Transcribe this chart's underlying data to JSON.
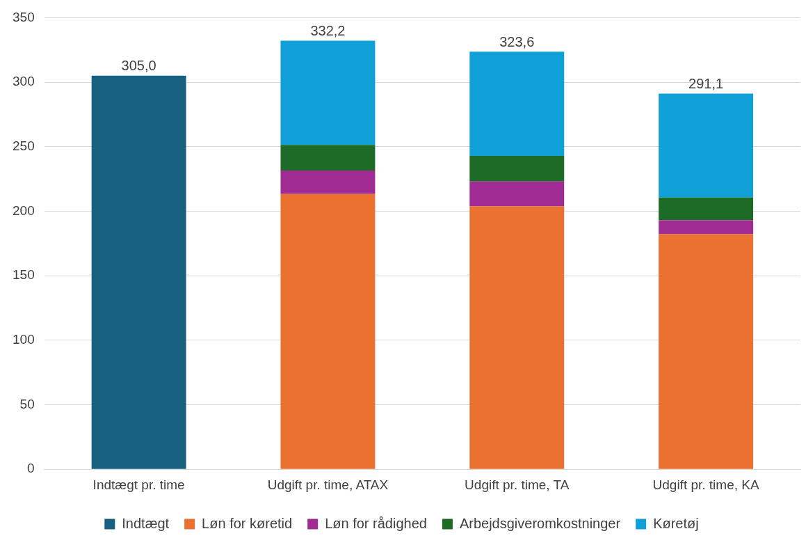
{
  "chart_data": {
    "type": "bar",
    "stacked": true,
    "categories": [
      "Indtægt pr. time",
      "Udgift pr. time, ATAX",
      "Udgift pr. time, TA",
      "Udgift pr. time, KA"
    ],
    "series": [
      {
        "name": "Indtægt",
        "color": "#17607f",
        "values": [
          305.0,
          null,
          null,
          null
        ]
      },
      {
        "name": "Løn for køretid",
        "color": "#ea7130",
        "values": [
          null,
          213.3,
          203.7,
          182.2
        ]
      },
      {
        "name": "Løn for rådighed",
        "color": "#a02b93",
        "values": [
          null,
          18.2,
          19.3,
          10.8
        ]
      },
      {
        "name": "Arbejdsgiveromkostninger",
        "color": "#1d6b26",
        "values": [
          null,
          19.9,
          19.8,
          17.6
        ]
      },
      {
        "name": "Køretøj",
        "color": "#10a0d8",
        "values": [
          null,
          80.8,
          80.8,
          80.5
        ]
      }
    ],
    "totals": [
      "305,0",
      "332,2",
      "323,6",
      "291,1"
    ],
    "ylim": [
      0,
      350
    ],
    "yticks": [
      0,
      50,
      100,
      150,
      200,
      250,
      300,
      350
    ],
    "grid": "y",
    "legend": "bottom"
  }
}
